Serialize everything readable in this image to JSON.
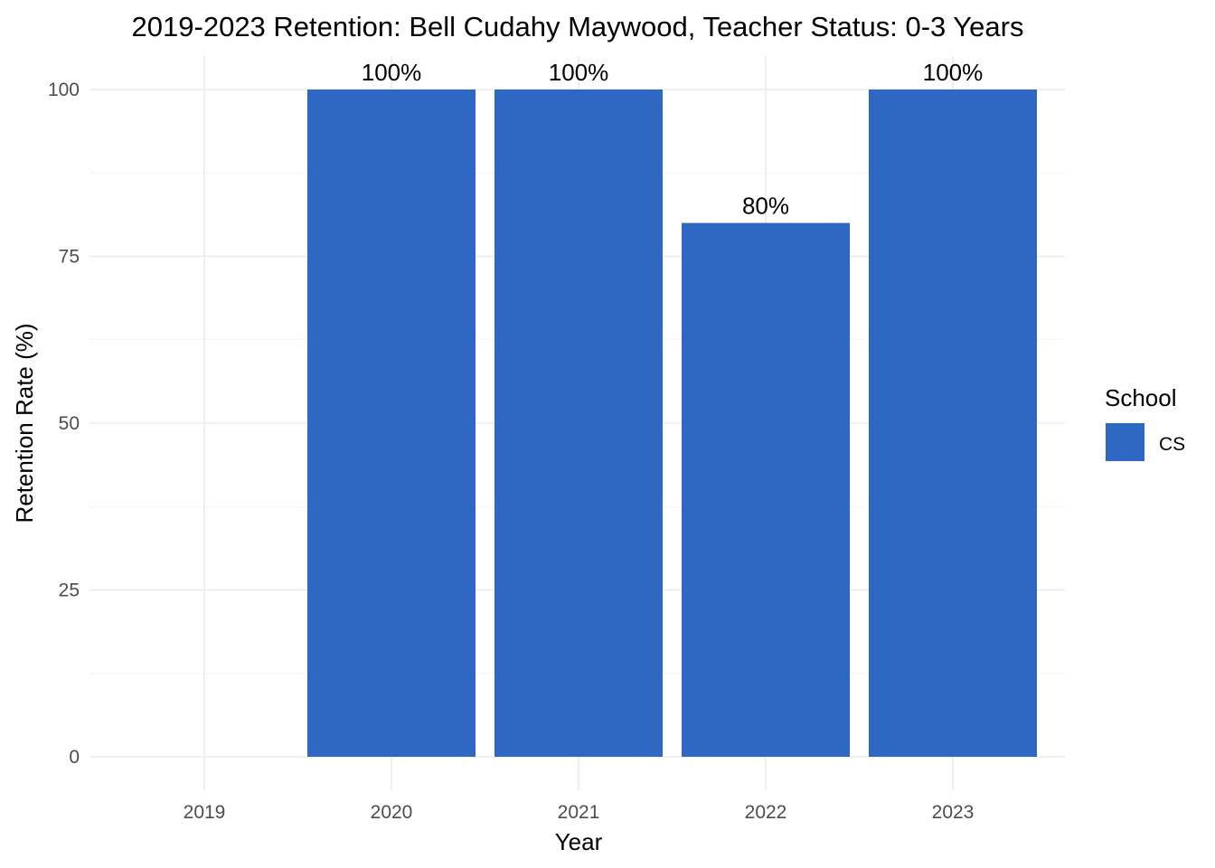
{
  "chart_data": {
    "type": "bar",
    "title": "2019-2023 Retention: Bell Cudahy Maywood, Teacher Status: 0-3 Years",
    "xlabel": "Year",
    "ylabel": "Retention Rate (%)",
    "categories": [
      "2019",
      "2020",
      "2021",
      "2022",
      "2023"
    ],
    "series": [
      {
        "name": "CS",
        "values": [
          null,
          100,
          100,
          80,
          100
        ],
        "labels": [
          "",
          "100%",
          "100%",
          "80%",
          "100%"
        ]
      }
    ],
    "ylim": [
      0,
      100
    ],
    "yticks": [
      0,
      25,
      50,
      75,
      100
    ],
    "grid": true,
    "legend": {
      "title": "School",
      "position": "right",
      "entries": [
        "CS"
      ]
    },
    "colors": {
      "bar": "#2E68C3",
      "grid_major": "#ebebeb",
      "grid_minor": "#f3f3f3",
      "tick_text": "#4d4d4d"
    }
  }
}
